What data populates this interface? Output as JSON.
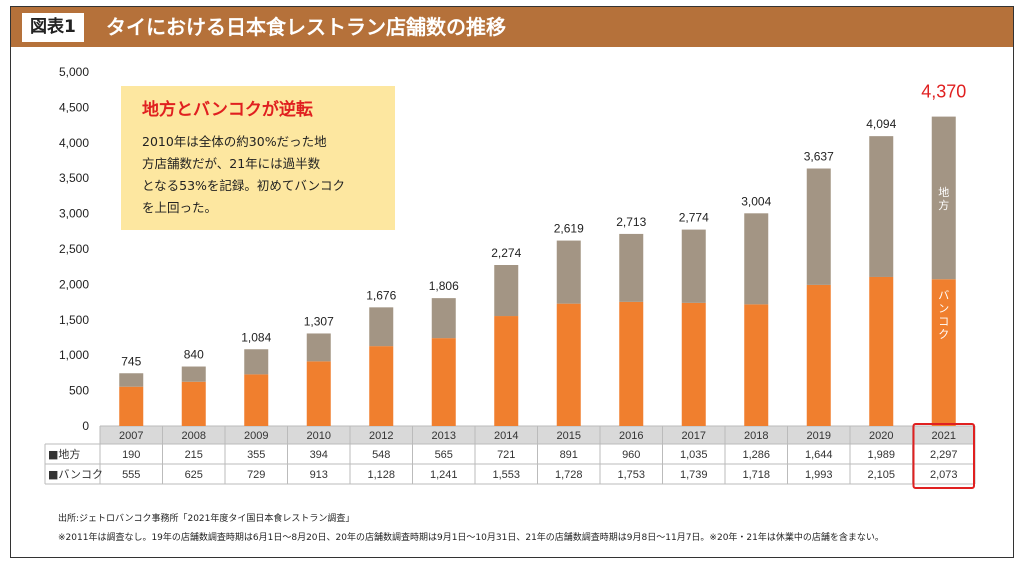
{
  "header": {
    "figure_label": "図表1",
    "title": "タイにおける日本食レストラン店舗数の推移"
  },
  "callout": {
    "heading": "地方とバンコクが逆転",
    "lines": [
      "2010年は全体の約30%だった地",
      "方店舗数だが、21年には過半数",
      "となる53%を記録。初めてバンコク",
      "を上回った。"
    ]
  },
  "chart_data": {
    "type": "bar",
    "stacked": true,
    "categories": [
      "2007",
      "2008",
      "2009",
      "2010",
      "2012",
      "2013",
      "2014",
      "2015",
      "2016",
      "2017",
      "2018",
      "2019",
      "2020",
      "2021"
    ],
    "series": [
      {
        "name": "バンコク",
        "color": "#f07f2e",
        "values": [
          555,
          625,
          729,
          913,
          1128,
          1241,
          1553,
          1728,
          1753,
          1739,
          1718,
          1993,
          2105,
          2073
        ]
      },
      {
        "name": "地方",
        "color": "#a39584",
        "values": [
          190,
          215,
          355,
          394,
          548,
          565,
          721,
          891,
          960,
          1035,
          1286,
          1644,
          1989,
          2297
        ]
      }
    ],
    "totals": [
      "745",
      "840",
      "1,084",
      "1,307",
      "1,676",
      "1,806",
      "2,274",
      "2,619",
      "2,713",
      "2,774",
      "3,004",
      "3,637",
      "4,094",
      "4,370"
    ],
    "ylim": [
      0,
      5000
    ],
    "yticks": [
      "0",
      "500",
      "1,000",
      "1,500",
      "2,000",
      "2,500",
      "3,000",
      "3,500",
      "4,000",
      "4,500",
      "5,000"
    ],
    "highlight_category": "2021",
    "highlight_color": "#e02020",
    "inbar_labels": {
      "upper": "地方",
      "lower": "バンコク"
    },
    "table": {
      "rows": [
        {
          "label": "■地方",
          "cells": [
            "190",
            "215",
            "355",
            "394",
            "548",
            "565",
            "721",
            "891",
            "960",
            "1,035",
            "1,286",
            "1,644",
            "1,989",
            "2,297"
          ]
        },
        {
          "label": "■バンコク",
          "cells": [
            "555",
            "625",
            "729",
            "913",
            "1,128",
            "1,241",
            "1,553",
            "1,728",
            "1,753",
            "1,739",
            "1,718",
            "1,993",
            "2,105",
            "2,073"
          ]
        }
      ]
    }
  },
  "footnotes": {
    "source": "出所:ジェトロバンコク事務所「2021年度タイ国日本食レストラン調査」",
    "note": "※2011年は調査なし。19年の店舗数調査時期は6月1日～8月20日、20年の店舗数調査時期は9月1日～10月31日、21年の店舗数調査時期は9月8日～11月7日。※20年・21年は休業中の店舗を含まない。"
  }
}
